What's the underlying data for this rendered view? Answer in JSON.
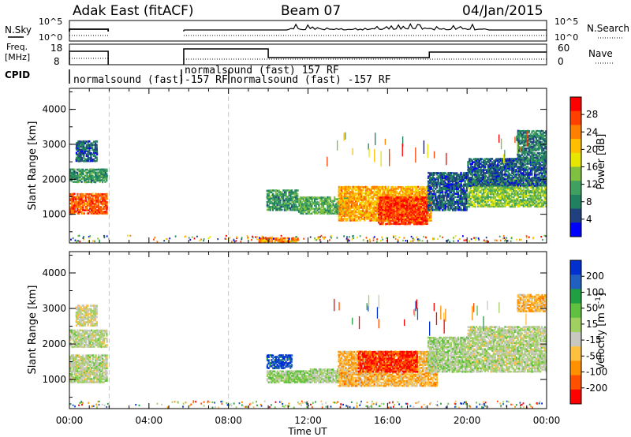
{
  "header": {
    "station": "Adak East (fitACF)",
    "beam": "Beam 07",
    "date": "04/Jan/2015"
  },
  "noise_panel": {
    "left_label": "N.Sky",
    "right_label": "N.Search",
    "left_ticks": [
      "10^5",
      "10^0"
    ],
    "right_ticks": [
      "10^5",
      "10^0"
    ]
  },
  "freq_panel": {
    "left_label_line1": "Freq.",
    "left_label_line2": "[MHz]",
    "right_label": "Nave",
    "left_ticks": [
      "18",
      "8"
    ],
    "right_ticks": [
      "60",
      "0"
    ]
  },
  "cpid": {
    "label": "CPID",
    "entries": [
      {
        "text": "normalsound (fast)"
      },
      {
        "text": "-157 RF"
      },
      {
        "text": "normalsound (fast)  157 RF"
      },
      {
        "text": "normalsound (fast) -157 RF"
      }
    ]
  },
  "power_colorbar": {
    "label": "Power [dB]",
    "ticks": [
      "28",
      "24",
      "20",
      "16",
      "12",
      "8",
      "4"
    ],
    "colors": [
      "#ff0000",
      "#ff4000",
      "#ff8000",
      "#ffbf00",
      "#e6e600",
      "#80c040",
      "#40a060",
      "#208060",
      "#204080",
      "#0000ff"
    ]
  },
  "velocity_colorbar": {
    "label_main": "Velocity [m s",
    "label_sup": "-1",
    "label_end": "]",
    "ticks": [
      "200",
      "100",
      "50",
      "15",
      "-15",
      "-50",
      "-100",
      "-200"
    ],
    "colors": [
      "#0030d0",
      "#2060c0",
      "#20a040",
      "#60c040",
      "#a0d060",
      "#c8c8c0",
      "#ffc040",
      "#ff9000",
      "#ff5000",
      "#ff0000"
    ]
  },
  "chart_data": [
    {
      "type": "heatmap",
      "title": "Power",
      "ylabel": "Slant Range [km]",
      "ylim": [
        180,
        4600
      ],
      "yticks": [
        "1000",
        "2000",
        "3000",
        "4000"
      ],
      "xticks": [
        "00:00",
        "04:00",
        "08:00",
        "12:00",
        "16:00",
        "20:00",
        "00:00"
      ],
      "xlabel": "Time UT",
      "xlim": [
        0,
        24
      ],
      "patches": [
        {
          "x0": 0.0,
          "x1": 1.9,
          "y0": 1000,
          "y1": 1600,
          "value": 26
        },
        {
          "x0": 0.0,
          "x1": 1.9,
          "y0": 1900,
          "y1": 2300,
          "value": 10
        },
        {
          "x0": 0.3,
          "x1": 1.4,
          "y0": 2500,
          "y1": 3100,
          "value": 6
        },
        {
          "x0": 9.9,
          "x1": 11.5,
          "y0": 1100,
          "y1": 1700,
          "value": 10
        },
        {
          "x0": 11.5,
          "x1": 14.0,
          "y0": 1000,
          "y1": 1500,
          "value": 12
        },
        {
          "x0": 13.5,
          "x1": 18.2,
          "y0": 800,
          "y1": 1800,
          "value": 22
        },
        {
          "x0": 15.5,
          "x1": 18.0,
          "y0": 700,
          "y1": 1500,
          "value": 28
        },
        {
          "x0": 18.0,
          "x1": 20.0,
          "y0": 1100,
          "y1": 2200,
          "value": 6
        },
        {
          "x0": 20.0,
          "x1": 24.0,
          "y0": 1200,
          "y1": 2000,
          "value": 14
        },
        {
          "x0": 20.0,
          "x1": 24.0,
          "y0": 1800,
          "y1": 2600,
          "value": 6
        },
        {
          "x0": 22.5,
          "x1": 24.0,
          "y0": 2500,
          "y1": 3400,
          "value": 8
        },
        {
          "x0": 9.5,
          "x1": 11.5,
          "y0": 200,
          "y1": 330,
          "value": 24
        }
      ]
    },
    {
      "type": "heatmap",
      "title": "Velocity",
      "ylabel": "Slant Range [km]",
      "ylim": [
        180,
        4600
      ],
      "yticks": [
        "1000",
        "2000",
        "3000",
        "4000"
      ],
      "xticks": [
        "00:00",
        "04:00",
        "08:00",
        "12:00",
        "16:00",
        "20:00",
        "00:00"
      ],
      "xlabel": "Time UT",
      "xlim": [
        0,
        24
      ],
      "patches": [
        {
          "x0": 0.0,
          "x1": 1.9,
          "y0": 900,
          "y1": 1700,
          "value": 0
        },
        {
          "x0": 0.0,
          "x1": 1.9,
          "y0": 1900,
          "y1": 2400,
          "value": 0
        },
        {
          "x0": 0.3,
          "x1": 1.4,
          "y0": 2500,
          "y1": 3100,
          "value": -20
        },
        {
          "x0": 9.9,
          "x1": 11.2,
          "y0": 1300,
          "y1": 1700,
          "value": 200
        },
        {
          "x0": 9.9,
          "x1": 12.0,
          "y0": 900,
          "y1": 1250,
          "value": 40
        },
        {
          "x0": 12.0,
          "x1": 14.0,
          "y0": 900,
          "y1": 1300,
          "value": 20
        },
        {
          "x0": 13.5,
          "x1": 18.5,
          "y0": 800,
          "y1": 1800,
          "value": -90
        },
        {
          "x0": 14.5,
          "x1": 17.5,
          "y0": 1200,
          "y1": 1800,
          "value": -200
        },
        {
          "x0": 18.0,
          "x1": 20.0,
          "y0": 1200,
          "y1": 2200,
          "value": 20
        },
        {
          "x0": 20.0,
          "x1": 24.0,
          "y0": 1200,
          "y1": 2500,
          "value": 0
        },
        {
          "x0": 22.5,
          "x1": 24.0,
          "y0": 2900,
          "y1": 3400,
          "value": -90
        }
      ]
    }
  ]
}
